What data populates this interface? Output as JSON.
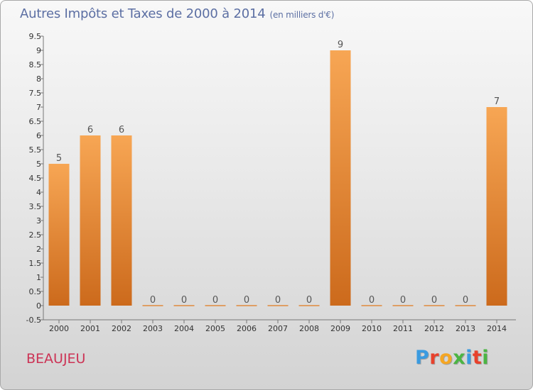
{
  "header": {
    "title": "Autres Impôts et Taxes de 2000 à 2014",
    "subtitle": "(en milliers d'€)"
  },
  "footer": {
    "place": "BEAUJEU",
    "brand_letters": [
      "P",
      "r",
      "o",
      "x",
      "i",
      "t",
      "i"
    ],
    "brand_colors": [
      "#3a9be0",
      "#e8412c",
      "#f5a623",
      "#4bb543",
      "#3a9be0",
      "#e8412c",
      "#4bb543"
    ]
  },
  "chart_data": {
    "type": "bar",
    "title": "Autres Impôts et Taxes de 2000 à 2014",
    "subtitle": "(en milliers d'€)",
    "categories": [
      "2000",
      "2001",
      "2002",
      "2003",
      "2004",
      "2005",
      "2006",
      "2007",
      "2008",
      "2009",
      "2010",
      "2011",
      "2012",
      "2013",
      "2014"
    ],
    "values": [
      5,
      6,
      6,
      0,
      0,
      0,
      0,
      0,
      0,
      9,
      0,
      0,
      0,
      0,
      7
    ],
    "data_labels": [
      "5",
      "6",
      "6",
      "0",
      "0",
      "0",
      "0",
      "0",
      "0",
      "9",
      "0",
      "0",
      "0",
      "0",
      "7"
    ],
    "y_ticks": [
      -0.5,
      0,
      0.5,
      1,
      1.5,
      2,
      2.5,
      3,
      3.5,
      4,
      4.5,
      5,
      5.5,
      6,
      6.5,
      7,
      7.5,
      8,
      8.5,
      9,
      9.5
    ],
    "y_tick_labels": [
      "-0.5",
      "0",
      "0.5",
      "1",
      "1.5",
      "2",
      "2.5",
      "3",
      "3.5",
      "4",
      "4.5",
      "5",
      "5.5",
      "6",
      "6.5",
      "7",
      "7.5",
      "8",
      "8.5",
      "9",
      "9.5"
    ],
    "ylim": [
      -0.5,
      9.5
    ],
    "xlabel": "",
    "ylabel": "",
    "grid": false,
    "legend": "none",
    "bar_color_top": "#f7a654",
    "bar_color_bottom": "#cc6a1c",
    "zero_line_color": "#e0893d"
  }
}
